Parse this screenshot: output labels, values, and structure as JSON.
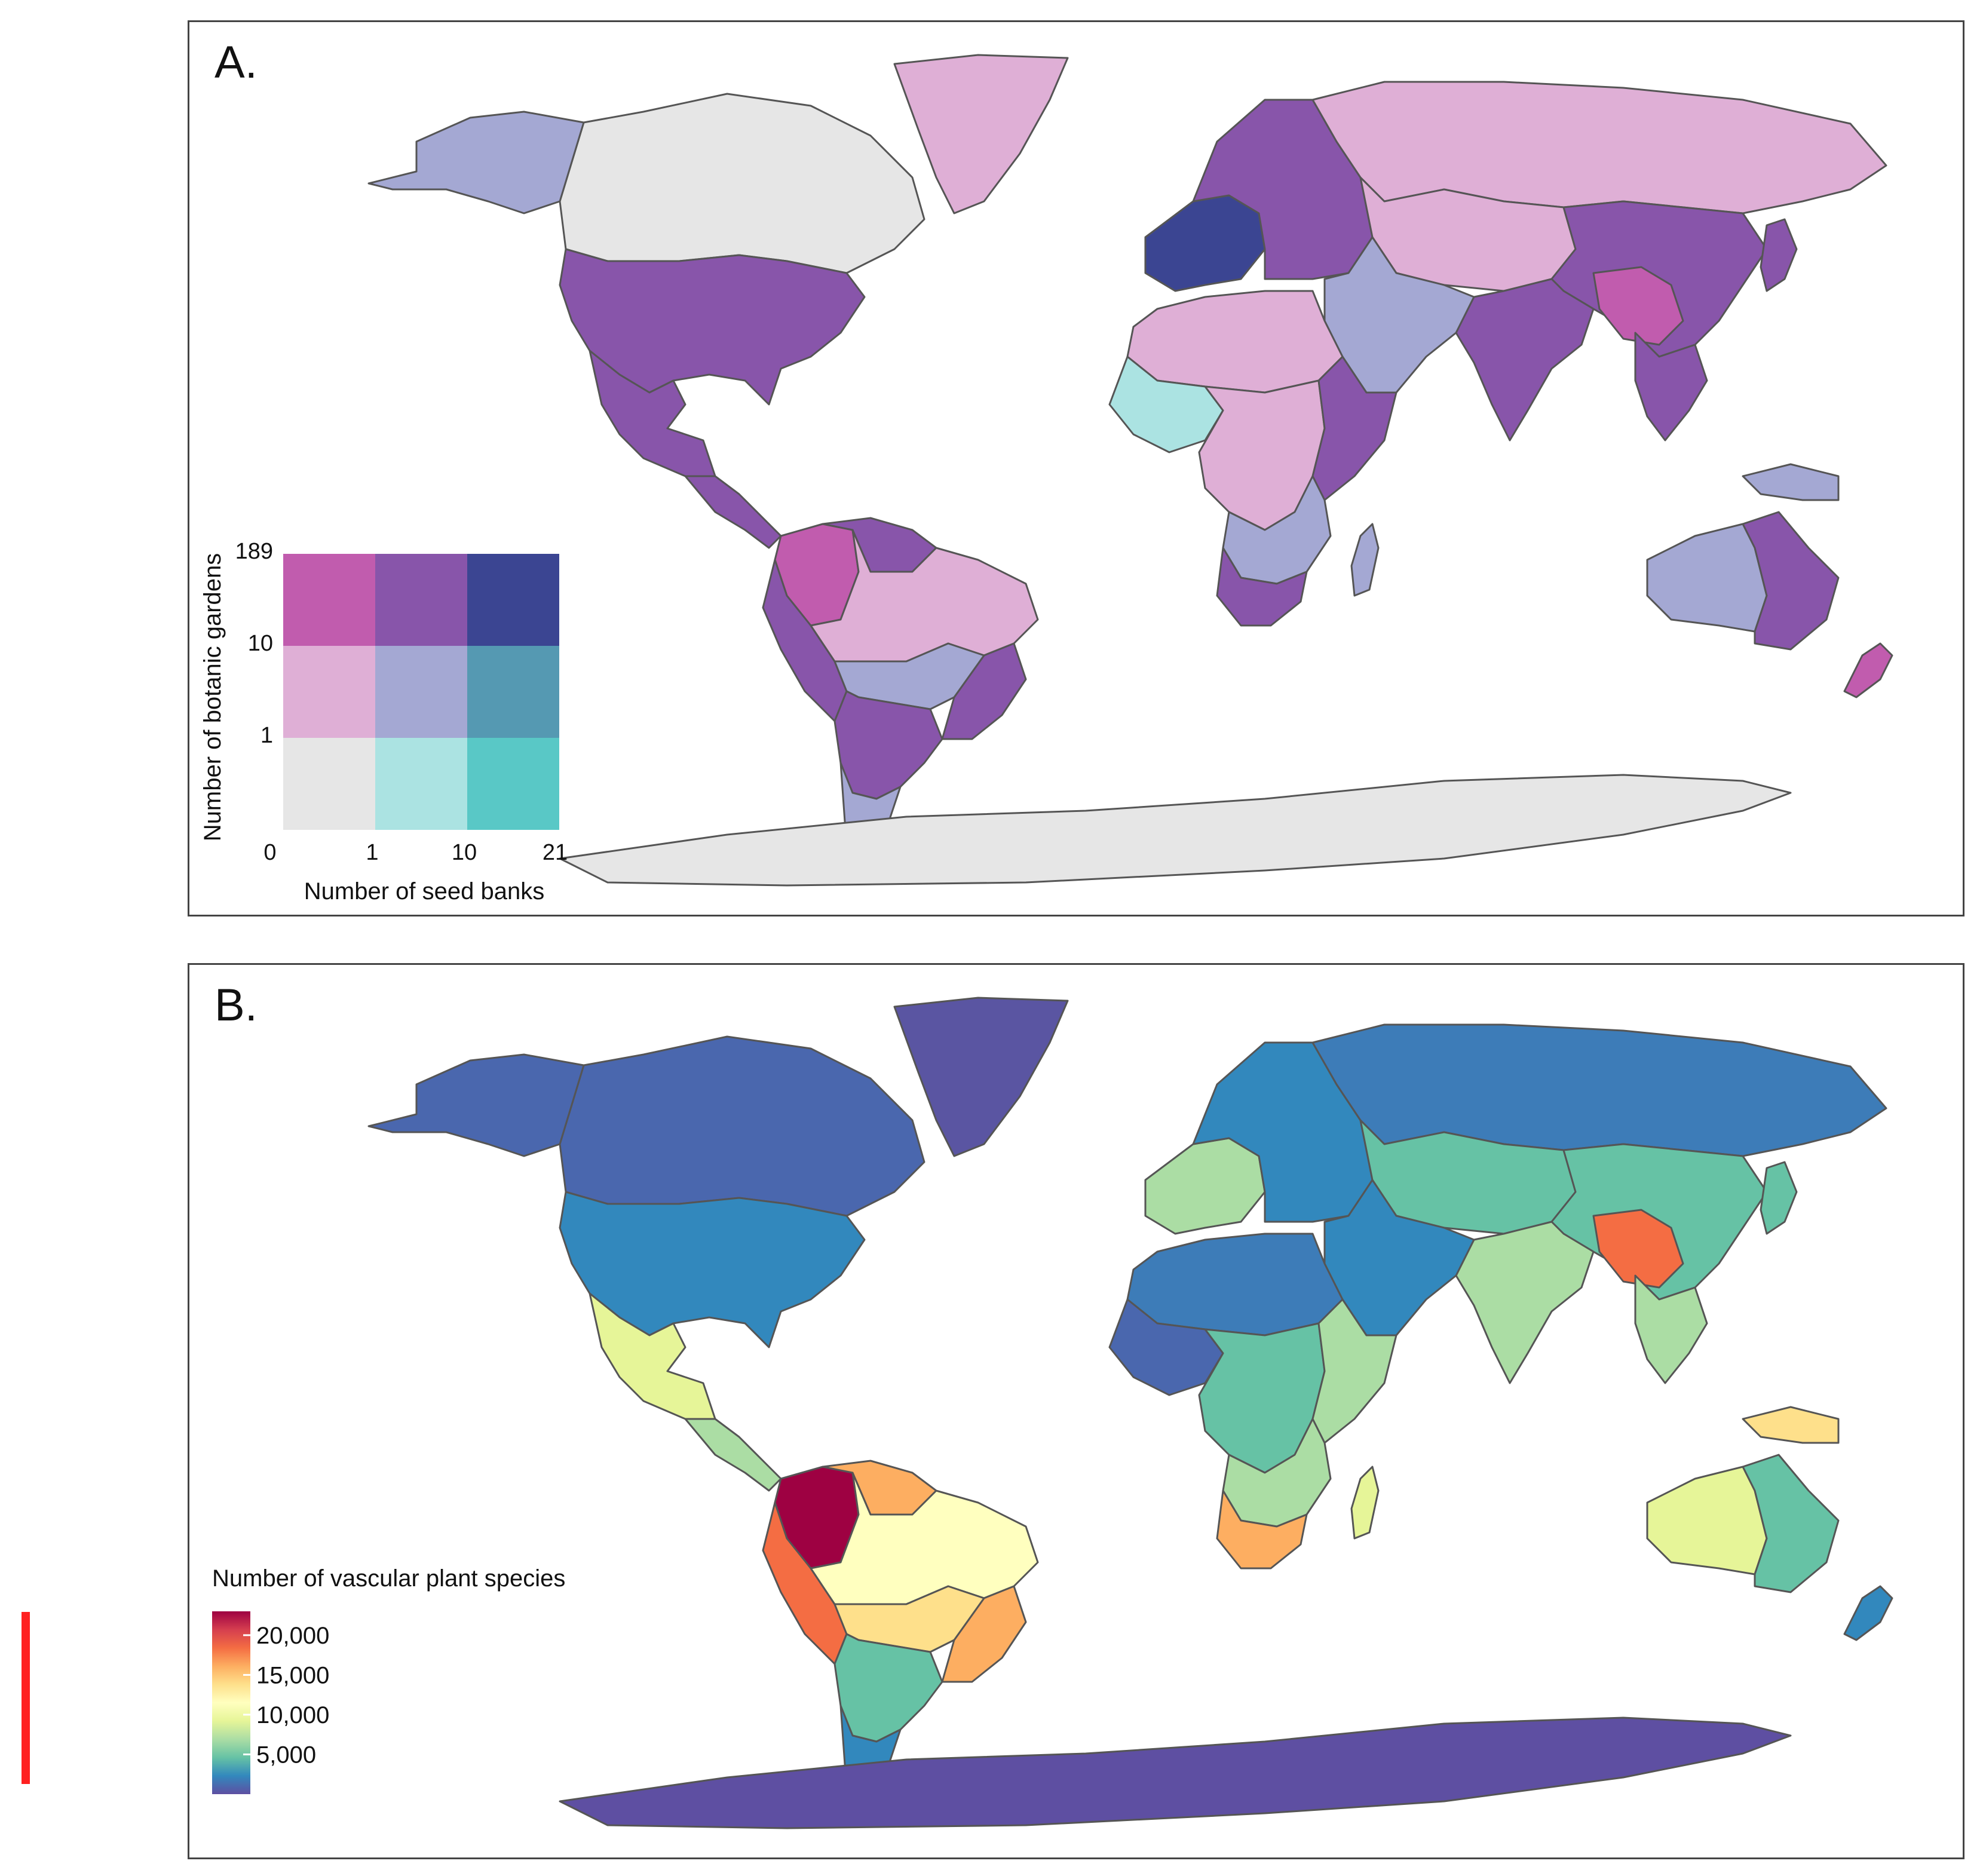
{
  "panel_a": {
    "label": "A.",
    "legend": {
      "y_title": "Number of botanic gardens",
      "x_title": "Number of seed banks",
      "y_ticks": [
        "189",
        "10",
        "1"
      ],
      "x_ticks": [
        "0",
        "1",
        "10",
        "21"
      ],
      "colors": [
        [
          "#c15cae",
          "#8855aa",
          "#3b4592"
        ],
        [
          "#dfafd6",
          "#a4a8d3",
          "#5599b2"
        ],
        [
          "#e6e6e6",
          "#abe3e2",
          "#59c8c6"
        ]
      ]
    }
  },
  "panel_b": {
    "label": "B.",
    "legend": {
      "title": "Number of vascular plant species",
      "ticks": [
        "20,000",
        "15,000",
        "10,000",
        "5,000"
      ],
      "tick_values": [
        20000,
        15000,
        10000,
        5000
      ],
      "range": [
        0,
        23000
      ],
      "colors": [
        "#5e4fa2",
        "#3288bd",
        "#66c2a5",
        "#abdda4",
        "#e6f598",
        "#ffffbf",
        "#fee08b",
        "#fdae61",
        "#f46d43",
        "#d53e4f",
        "#9e0142"
      ]
    }
  },
  "regions": [
    {
      "name": "canada",
      "a": "#e6e6e6",
      "b": "#4a67ae"
    },
    {
      "name": "alaska",
      "a": "#a4a8d3",
      "b": "#4a67ae"
    },
    {
      "name": "greenland",
      "a": "#dfafd6",
      "b": "#5a55a2"
    },
    {
      "name": "usa",
      "a": "#8855aa",
      "b": "#3288bd"
    },
    {
      "name": "mexico",
      "a": "#8855aa",
      "b": "#e6f598"
    },
    {
      "name": "central-america",
      "a": "#8855aa",
      "b": "#abdda4"
    },
    {
      "name": "colombia",
      "a": "#c15cae",
      "b": "#9e0142"
    },
    {
      "name": "venezuela",
      "a": "#8855aa",
      "b": "#fdae61"
    },
    {
      "name": "peru",
      "a": "#8855aa",
      "b": "#f46d43"
    },
    {
      "name": "brazil",
      "a": "#dfafd6",
      "b": "#ffffbf"
    },
    {
      "name": "southeast-brazil",
      "a": "#8855aa",
      "b": "#fdae61"
    },
    {
      "name": "bolivia",
      "a": "#a4a8d3",
      "b": "#fee08b"
    },
    {
      "name": "argentina-chile",
      "a": "#8855aa",
      "b": "#66c2a5"
    },
    {
      "name": "patagonia",
      "a": "#a4a8d3",
      "b": "#3288bd"
    },
    {
      "name": "western-europe",
      "a": "#3b4592",
      "b": "#abdda4"
    },
    {
      "name": "eastern-europe",
      "a": "#8855aa",
      "b": "#3288bd"
    },
    {
      "name": "russia",
      "a": "#dfafd6",
      "b": "#3d7cb8"
    },
    {
      "name": "central-asia",
      "a": "#dfafd6",
      "b": "#66c2a5"
    },
    {
      "name": "china",
      "a": "#8855aa",
      "b": "#66c2a5"
    },
    {
      "name": "south-china",
      "a": "#c15cae",
      "b": "#f46d43"
    },
    {
      "name": "india",
      "a": "#8855aa",
      "b": "#abdda4"
    },
    {
      "name": "middle-east",
      "a": "#a4a8d3",
      "b": "#3288bd"
    },
    {
      "name": "sahara",
      "a": "#dfafd6",
      "b": "#3d7cb8"
    },
    {
      "name": "west-africa",
      "a": "#abe3e2",
      "b": "#4a67ae"
    },
    {
      "name": "central-africa",
      "a": "#dfafd6",
      "b": "#66c2a5"
    },
    {
      "name": "east-africa",
      "a": "#8855aa",
      "b": "#abdda4"
    },
    {
      "name": "southern-africa",
      "a": "#a4a8d3",
      "b": "#abdda4"
    },
    {
      "name": "south-africa",
      "a": "#8855aa",
      "b": "#fdae61"
    },
    {
      "name": "madagascar",
      "a": "#a4a8d3",
      "b": "#e6f598"
    },
    {
      "name": "southeast-asia",
      "a": "#8855aa",
      "b": "#abdda4"
    },
    {
      "name": "new-guinea",
      "a": "#a4a8d3",
      "b": "#fee08b"
    },
    {
      "name": "australia-west",
      "a": "#a4a8d3",
      "b": "#e6f598"
    },
    {
      "name": "australia-east",
      "a": "#8855aa",
      "b": "#66c2a5"
    },
    {
      "name": "new-zealand",
      "a": "#c15cae",
      "b": "#3288bd"
    },
    {
      "name": "japan",
      "a": "#8855aa",
      "b": "#66c2a5"
    },
    {
      "name": "antarctica",
      "a": "#e6e6e6",
      "b": "#5e4fa2"
    }
  ]
}
